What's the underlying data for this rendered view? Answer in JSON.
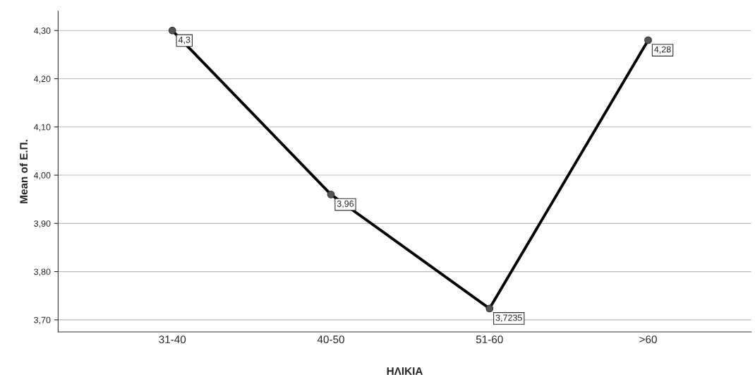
{
  "chart_data": {
    "type": "line",
    "xlabel": "ΗΛΙΚΙΑ",
    "ylabel": "Mean of Ε.Π.",
    "categories": [
      "31-40",
      "40-50",
      "51-60",
      ">60"
    ],
    "series": [
      {
        "color": "#000000",
        "values": [
          4.3,
          3.96,
          3.7235,
          4.28
        ],
        "value_labels": [
          "4,3",
          "3,96",
          "3,7235",
          "4,28"
        ]
      }
    ],
    "ylim": [
      3.675,
      4.34
    ],
    "yticks": [
      {
        "value": 3.7,
        "label": "3,70"
      },
      {
        "value": 3.8,
        "label": "3,80"
      },
      {
        "value": 3.9,
        "label": "3,90"
      },
      {
        "value": 4.0,
        "label": "4,00"
      },
      {
        "value": 4.1,
        "label": "4,10"
      },
      {
        "value": 4.2,
        "label": "4,20"
      },
      {
        "value": 4.3,
        "label": "4,30"
      }
    ],
    "grid": "y",
    "marker": "circle",
    "line_style": "solid"
  }
}
